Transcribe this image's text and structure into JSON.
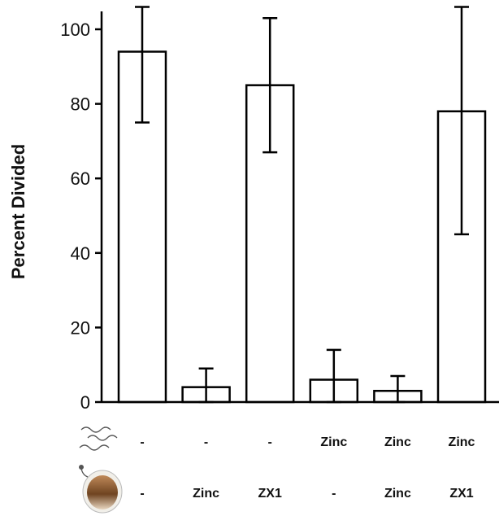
{
  "chart_data": {
    "type": "bar",
    "title": "",
    "xlabel": "",
    "ylabel": "Percent Divided",
    "ylim": [
      0,
      105
    ],
    "yticks": [
      0,
      20,
      40,
      60,
      80,
      100
    ],
    "grid": false,
    "legend": "none",
    "bar_fill": "#ffffff",
    "bar_stroke": "#000000",
    "values": [
      94,
      4,
      85,
      6,
      3,
      78
    ],
    "error_low": [
      75,
      0,
      67,
      0,
      0,
      45
    ],
    "error_high": [
      106,
      9,
      103,
      14,
      7,
      106
    ],
    "condition_rows": [
      {
        "icon": "sperm-icon",
        "labels": [
          "-",
          "-",
          "-",
          "Zinc",
          "Zinc",
          "Zinc"
        ]
      },
      {
        "icon": "egg-icon",
        "labels": [
          "-",
          "Zinc",
          "ZX1",
          "-",
          "Zinc",
          "ZX1"
        ]
      }
    ]
  }
}
